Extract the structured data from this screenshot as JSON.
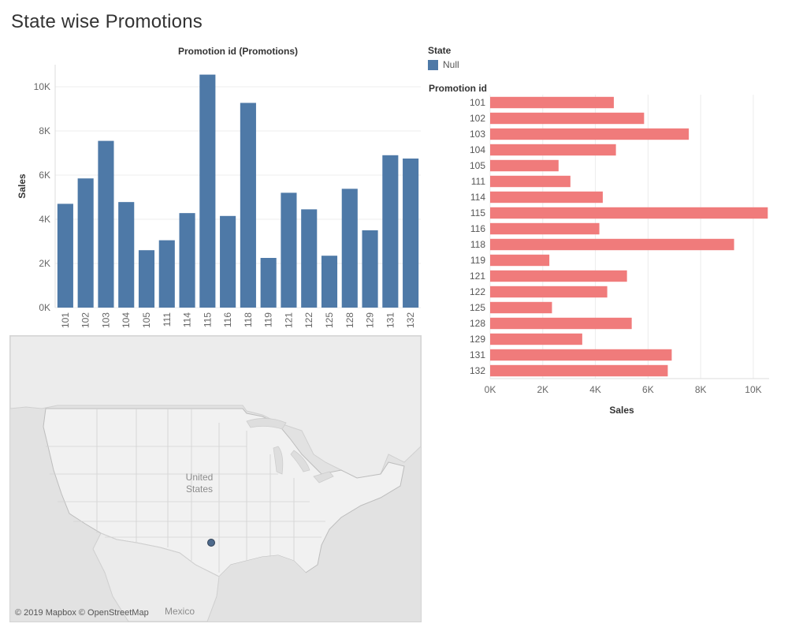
{
  "dashboard": {
    "title": "State wise Promotions"
  },
  "legend": {
    "title": "State",
    "items": [
      {
        "label": "Null",
        "color": "#4e79a7"
      }
    ]
  },
  "map": {
    "country_label": "United States",
    "country_label_line1": "United",
    "country_label_line2": "States",
    "mexico_label": "Mexico",
    "credit": "© 2019 Mapbox © OpenStreetMap",
    "marker_color": "#4e6a8c"
  },
  "colors": {
    "bar_vertical": "#4e79a7",
    "bar_horizontal": "#f07b7b",
    "grid": "#ececec"
  },
  "chart_data": [
    {
      "type": "bar",
      "orientation": "vertical",
      "title": "Promotion id (Promotions)",
      "xlabel": "",
      "ylabel": "Sales",
      "categories": [
        "101",
        "102",
        "103",
        "104",
        "105",
        "111",
        "114",
        "115",
        "116",
        "118",
        "119",
        "121",
        "122",
        "125",
        "128",
        "129",
        "131",
        "132"
      ],
      "values": [
        4700,
        5850,
        7550,
        4780,
        2600,
        3050,
        4280,
        10550,
        4150,
        9270,
        2250,
        5200,
        4450,
        2350,
        5380,
        3500,
        6900,
        6750
      ],
      "ylim": [
        0,
        11000
      ],
      "yticks": [
        0,
        2000,
        4000,
        6000,
        8000,
        10000
      ],
      "ytick_labels": [
        "0K",
        "2K",
        "4K",
        "6K",
        "8K",
        "10K"
      ]
    },
    {
      "type": "bar",
      "orientation": "horizontal",
      "title": "",
      "category_header": "Promotion id",
      "xlabel": "Sales",
      "ylabel": "Promotion id",
      "categories": [
        "101",
        "102",
        "103",
        "104",
        "105",
        "111",
        "114",
        "115",
        "116",
        "118",
        "119",
        "121",
        "122",
        "125",
        "128",
        "129",
        "131",
        "132"
      ],
      "values": [
        4700,
        5850,
        7550,
        4780,
        2600,
        3050,
        4280,
        10550,
        4150,
        9270,
        2250,
        5200,
        4450,
        2350,
        5380,
        3500,
        6900,
        6750
      ],
      "xlim": [
        0,
        10600
      ],
      "xticks": [
        0,
        2000,
        4000,
        6000,
        8000,
        10000
      ],
      "xtick_labels": [
        "0K",
        "2K",
        "4K",
        "6K",
        "8K",
        "10K"
      ]
    }
  ]
}
